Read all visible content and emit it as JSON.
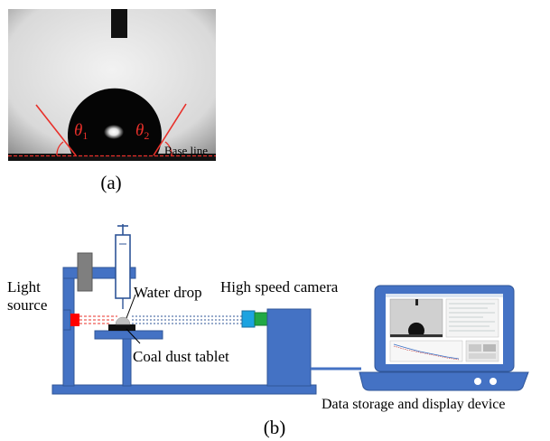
{
  "panel_a": {
    "caption": "(a)",
    "theta1_symbol": "θ",
    "theta1_sub": "1",
    "theta2_symbol": "θ",
    "theta2_sub": "2",
    "baseline_label": "Base line"
  },
  "panel_b": {
    "caption": "(b)",
    "light_source_line1": "Light",
    "light_source_line2": "source",
    "water_drop_label": "Water drop",
    "camera_label": "High speed camera",
    "tablet_label": "Coal dust tablet",
    "device_label": "Data storage and display device"
  },
  "colors": {
    "frame_blue": "#4472C4",
    "dark_blue": "#2F5597",
    "angle_red": "#E8302A",
    "light_red": "#FF0000",
    "camera_cyan": "#1CA3E0",
    "camera_green": "#22A845",
    "clamp_gray": "#7F7F7F"
  }
}
